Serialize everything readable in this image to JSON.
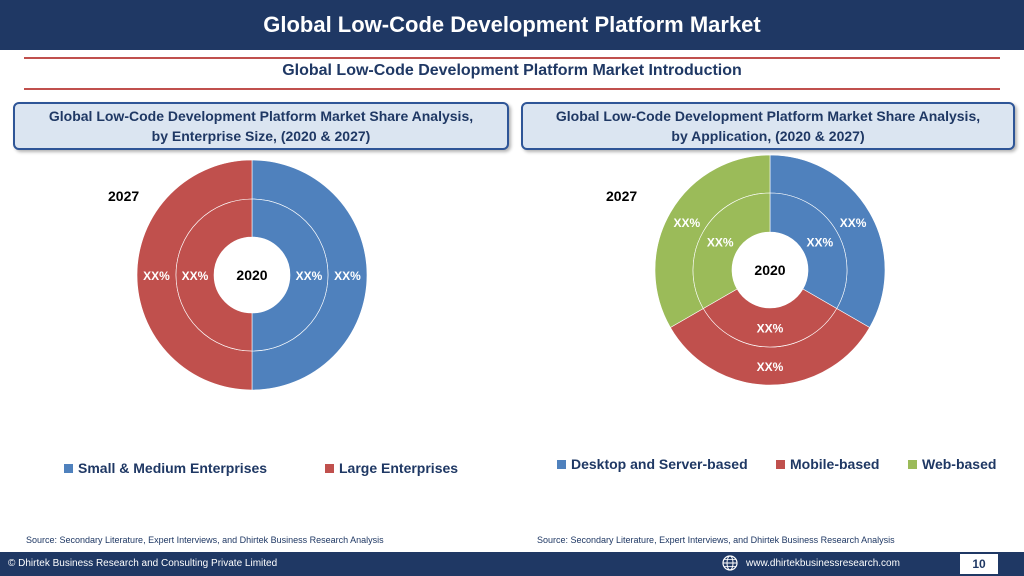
{
  "header": {
    "title": "Global Low-Code Development Platform Market"
  },
  "subtitle": "Global Low-Code Development Platform Market  Introduction",
  "boxes": {
    "left": "Global Low-Code Development Platform Market  Share Analysis,\nby Enterprise Size, (2020 & 2027)",
    "right": "Global Low-Code Development Platform Market  Share Analysis,\nby Application, (2020 & 2027)"
  },
  "chart_data": [
    {
      "type": "pie",
      "outer_label": "2027",
      "inner_label": "2020",
      "categories": [
        "Small & Medium Enterprises",
        "Large Enterprises"
      ],
      "colors": [
        "#4f81bd",
        "#c0504d"
      ],
      "rings": [
        {
          "name": "2027",
          "values": [
            50,
            50
          ],
          "labels": [
            "XX%",
            "XX%"
          ]
        },
        {
          "name": "2020",
          "values": [
            50,
            50
          ],
          "labels": [
            "XX%",
            "XX%"
          ]
        }
      ]
    },
    {
      "type": "pie",
      "outer_label": "2027",
      "inner_label": "2020",
      "categories": [
        "Desktop and Server-based",
        "Mobile-based",
        "Web-based"
      ],
      "colors": [
        "#4f81bd",
        "#c0504d",
        "#9bbb59"
      ],
      "rings": [
        {
          "name": "2027",
          "values": [
            33.3,
            33.3,
            33.3
          ],
          "labels": [
            "XX%",
            "XX%",
            "XX%"
          ]
        },
        {
          "name": "2020",
          "values": [
            33.3,
            33.3,
            33.3
          ],
          "labels": [
            "XX%",
            "XX%",
            "XX%"
          ]
        }
      ]
    }
  ],
  "sources": {
    "left": "Source: Secondary Literature, Expert Interviews, and Dhirtek Business Research Analysis",
    "right": "Source: Secondary Literature, Expert Interviews, and Dhirtek Business Research Analysis"
  },
  "footer": {
    "copyright": "© Dhirtek Business Research and Consulting Private Limited",
    "website": "www.dhirtekbusinessresearch.com",
    "page": "10"
  }
}
